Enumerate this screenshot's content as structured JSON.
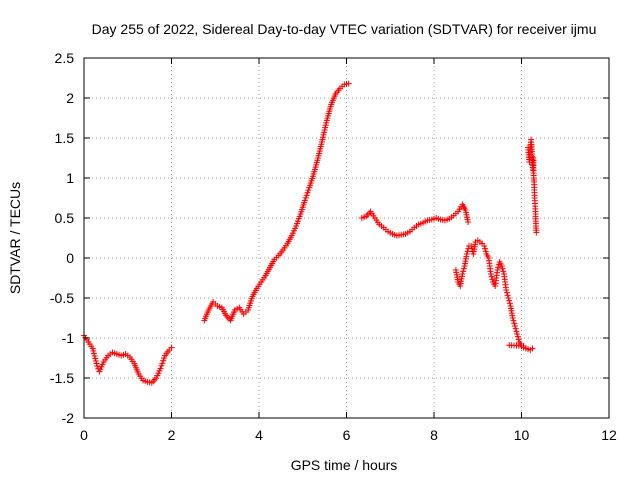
{
  "chart_data": {
    "type": "scatter",
    "title": "Day 255 of 2022, Sidereal Day-to-day VTEC variation (SDTVAR) for receiver ijmu",
    "xlabel": "GPS time / hours",
    "ylabel": "SDTVAR / TECUs",
    "xlim": [
      0,
      12
    ],
    "ylim": [
      -2,
      2.5
    ],
    "x_ticks": [
      0,
      2,
      4,
      6,
      8,
      10,
      12
    ],
    "x_tick_labels": [
      "0",
      "2",
      "4",
      "6",
      "8",
      "10",
      "12"
    ],
    "y_ticks": [
      -2,
      -1.5,
      -1,
      -0.5,
      0,
      0.5,
      1,
      1.5,
      2,
      2.5
    ],
    "y_tick_labels": [
      "-2",
      "-1.5",
      "-1",
      "-0.5",
      "0",
      "0.5",
      "1",
      "1.5",
      "2",
      "2.5"
    ],
    "grid": true,
    "marker": "+",
    "series": [
      {
        "name": "SDTVAR",
        "color": "#ff0000",
        "segments": [
          {
            "x": [
              0.0,
              0.1,
              0.2,
              0.3,
              0.35,
              0.45,
              0.55,
              0.65,
              0.75,
              0.85,
              0.95,
              1.05,
              1.15,
              1.25,
              1.35,
              1.45,
              1.55,
              1.65,
              1.75,
              1.85,
              1.95,
              2.0
            ],
            "y": [
              -0.97,
              -1.05,
              -1.13,
              -1.35,
              -1.42,
              -1.3,
              -1.22,
              -1.18,
              -1.2,
              -1.22,
              -1.2,
              -1.24,
              -1.32,
              -1.45,
              -1.53,
              -1.55,
              -1.56,
              -1.5,
              -1.38,
              -1.22,
              -1.15,
              -1.12
            ]
          },
          {
            "x": [
              2.75,
              2.85,
              2.95,
              3.05,
              3.15,
              3.25,
              3.35,
              3.45,
              3.55,
              3.65,
              3.75,
              3.85,
              3.95,
              4.05,
              4.15,
              4.25,
              4.35,
              4.45,
              4.55,
              4.65,
              4.75,
              4.85,
              4.95,
              5.05,
              5.15,
              5.25,
              5.35,
              5.45,
              5.55,
              5.65,
              5.75,
              5.85,
              5.95,
              6.05
            ],
            "y": [
              -0.78,
              -0.65,
              -0.55,
              -0.6,
              -0.62,
              -0.72,
              -0.78,
              -0.65,
              -0.62,
              -0.7,
              -0.65,
              -0.48,
              -0.38,
              -0.3,
              -0.22,
              -0.12,
              -0.02,
              0.03,
              0.1,
              0.18,
              0.28,
              0.4,
              0.55,
              0.72,
              0.88,
              1.05,
              1.25,
              1.48,
              1.72,
              1.92,
              2.05,
              2.12,
              2.17,
              2.18
            ]
          },
          {
            "x": [
              6.35,
              6.45,
              6.55,
              6.65,
              6.75,
              6.85,
              6.95,
              7.05,
              7.15,
              7.25,
              7.35,
              7.45,
              7.55,
              7.65,
              7.75,
              7.85,
              7.95,
              8.05,
              8.15,
              8.25,
              8.35,
              8.45,
              8.55,
              8.65,
              8.72,
              8.78
            ],
            "y": [
              0.5,
              0.52,
              0.58,
              0.5,
              0.42,
              0.38,
              0.33,
              0.3,
              0.28,
              0.29,
              0.3,
              0.33,
              0.38,
              0.42,
              0.44,
              0.47,
              0.48,
              0.5,
              0.48,
              0.47,
              0.49,
              0.53,
              0.58,
              0.67,
              0.6,
              0.45
            ]
          },
          {
            "x": [
              8.5,
              8.55,
              8.6,
              8.65,
              8.7,
              8.75,
              8.8,
              8.85,
              8.9,
              8.95,
              9.0,
              9.05,
              9.1,
              9.15,
              9.2,
              9.25,
              9.3,
              9.35,
              9.4,
              9.45,
              9.5,
              9.55,
              9.6,
              9.65,
              9.7,
              9.75,
              9.8,
              9.85,
              9.9,
              9.95,
              10.0,
              10.05,
              10.1,
              10.15,
              10.2,
              10.25
            ],
            "y": [
              -0.15,
              -0.3,
              -0.35,
              -0.2,
              -0.1,
              0.05,
              0.15,
              0.15,
              0.05,
              0.2,
              0.22,
              0.2,
              0.18,
              0.15,
              0.05,
              0.0,
              -0.2,
              -0.3,
              -0.35,
              -0.15,
              -0.05,
              -0.1,
              -0.2,
              -0.4,
              -0.5,
              -0.6,
              -0.75,
              -0.85,
              -0.95,
              -1.05,
              -1.1,
              -1.12,
              -1.13,
              -1.14,
              -1.15,
              -1.13
            ]
          },
          {
            "x": [
              9.72,
              10.05
            ],
            "y": [
              -1.09,
              -1.1
            ]
          },
          {
            "x": [
              10.15,
              10.18,
              10.2,
              10.22,
              10.24,
              10.26,
              10.27,
              10.28,
              10.29,
              10.3,
              10.32,
              10.33,
              10.34
            ],
            "y": [
              1.38,
              1.2,
              1.35,
              1.48,
              1.3,
              1.1,
              1.25,
              1.0,
              0.95,
              0.75,
              0.58,
              0.4,
              0.32
            ]
          }
        ]
      }
    ]
  }
}
